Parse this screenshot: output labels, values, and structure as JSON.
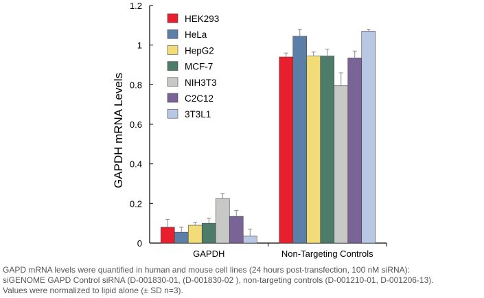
{
  "chart_data": {
    "type": "bar",
    "title": "",
    "xlabel": "",
    "ylabel": "GAPDH mRNA Levels",
    "ylim": [
      0,
      1.2
    ],
    "yticks": [
      0,
      0.2,
      0.4,
      0.6,
      0.8,
      1,
      1.2
    ],
    "ytick_labels": [
      "0",
      "0.2",
      "0.4",
      "0.6",
      "0.8",
      "1",
      "1.2"
    ],
    "categories": [
      "GAPDH",
      "Non-Targeting Controls"
    ],
    "legend_position": "top-left",
    "grid": false,
    "series": [
      {
        "name": "HEK293",
        "color": "#e8202e",
        "values": [
          0.08,
          0.94
        ],
        "errors": [
          0.04,
          0.02
        ]
      },
      {
        "name": "HeLa",
        "color": "#5b7fa6",
        "values": [
          0.055,
          1.045
        ],
        "errors": [
          0.025,
          0.035
        ]
      },
      {
        "name": "HepG2",
        "color": "#f2dc78",
        "values": [
          0.09,
          0.945
        ],
        "errors": [
          0.015,
          0.02
        ]
      },
      {
        "name": "MCF-7",
        "color": "#4e7c6a",
        "values": [
          0.1,
          0.945
        ],
        "errors": [
          0.025,
          0.035
        ]
      },
      {
        "name": "NIH3T3",
        "color": "#c8c8c6",
        "values": [
          0.225,
          0.795
        ],
        "errors": [
          0.025,
          0.065
        ]
      },
      {
        "name": "C2C12",
        "color": "#7a6396",
        "values": [
          0.135,
          0.935
        ],
        "errors": [
          0.03,
          0.035
        ]
      },
      {
        "name": "3T3L1",
        "color": "#b8c7e3",
        "values": [
          0.035,
          1.07
        ],
        "errors": [
          0.035,
          0.01
        ]
      }
    ]
  },
  "caption": {
    "line1": "GAPD mRNA levels were quantified in human and mouse cell lines (24 hours post-transfection, 100 nM siRNA):",
    "line2": "siGENOME GAPD Control siRNA (D-001830-01, (D-001830-02 ), non-targeting controls (D-001210-01, D-001206-13).",
    "line3": "Values were normalized to lipid alone (± SD n=3)."
  }
}
